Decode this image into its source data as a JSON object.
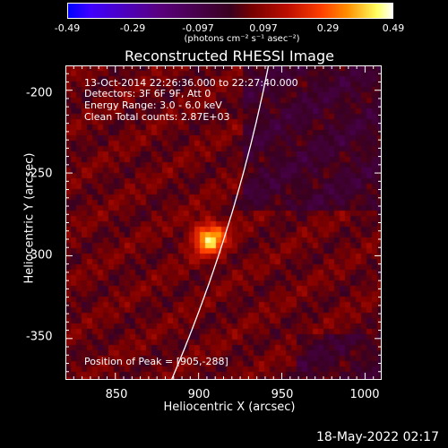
{
  "colorbar": {
    "ticks": [
      "-0.49",
      "-0.29",
      "-0.097",
      "0.097",
      "0.29",
      "0.49"
    ],
    "unit": "(photons cm⁻² s⁻¹ asec⁻²)",
    "colors": [
      "#0000ff",
      "#4000ff",
      "#5a0080",
      "#3a0020",
      "#7a0000",
      "#c01000",
      "#ff4000",
      "#ff9000",
      "#ffff60",
      "#ffffff"
    ]
  },
  "chart_data": {
    "type": "heatmap",
    "title": "Reconstructed RHESSI Image",
    "xlabel": "Heliocentric X (arcsec)",
    "ylabel": "Heliocentric Y (arcsec)",
    "xlim": [
      820,
      1010
    ],
    "ylim": [
      -375,
      -185
    ],
    "xticks": [
      "850",
      "900",
      "950",
      "1000"
    ],
    "yticks": [
      "-200",
      "-250",
      "-300",
      "-350"
    ],
    "zlim": [
      -0.49,
      0.49
    ],
    "peak": [
      905,
      -288
    ],
    "annotations": {
      "date": "13-Oct-2014 22:26:36.000 to 22:27:40.000",
      "detectors": "Detectors: 3F 6F 9F, Att 0",
      "energy": "Energy Range: 3.0 - 6.0 keV",
      "clean": "Clean     Total counts: 2.87E+03",
      "peak": "Position of Peak = [905,-288]"
    }
  },
  "footer": {
    "date": "18-May-2022 02:17"
  }
}
